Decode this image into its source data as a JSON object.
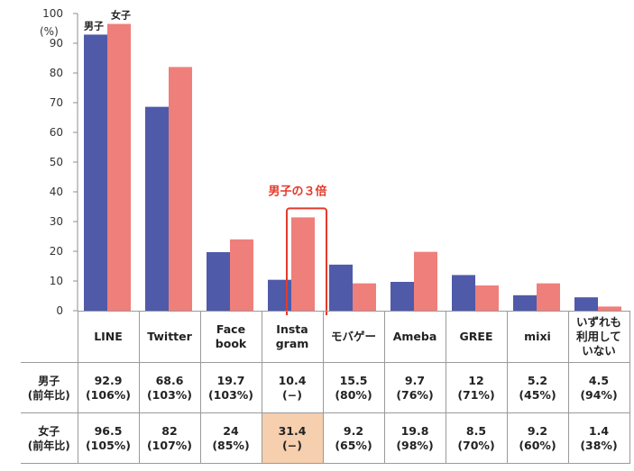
{
  "chart_data": {
    "type": "bar",
    "categories": [
      "LINE",
      "Twitter",
      "Face\nbook",
      "Insta\ngram",
      "モバゲー",
      "Ameba",
      "GREE",
      "mixi",
      "いずれも\n利用して\nいない"
    ],
    "series": [
      {
        "name": "男子",
        "color": "#4f5aa9",
        "values": [
          92.9,
          68.6,
          19.7,
          10.4,
          15.5,
          9.7,
          12,
          5.2,
          4.5
        ],
        "yoy": [
          "(106%)",
          "(103%)",
          "(103%)",
          "(−)",
          "(80%)",
          "(76%)",
          "(71%)",
          "(45%)",
          "(94%)"
        ]
      },
      {
        "name": "女子",
        "color": "#ef7f7a",
        "values": [
          96.5,
          82,
          24,
          31.4,
          9.2,
          19.8,
          8.5,
          9.2,
          1.4
        ],
        "yoy": [
          "(105%)",
          "(107%)",
          "(85%)",
          "(−)",
          "(65%)",
          "(98%)",
          "(70%)",
          "(60%)",
          "(38%)"
        ]
      }
    ],
    "ylim": [
      0,
      100
    ],
    "yticks": [
      0,
      10,
      20,
      30,
      40,
      50,
      60,
      70,
      80,
      90,
      100
    ],
    "ylabel": "(%)",
    "grid": false,
    "annotation": {
      "text": "男子の３倍",
      "category_index": 3,
      "color": "#e43a2b"
    },
    "table": {
      "rows": [
        {
          "header_line1": "男子",
          "header_line2": "(前年比)",
          "series_index": 0
        },
        {
          "header_line1": "女子",
          "header_line2": "(前年比)",
          "series_index": 1
        }
      ],
      "highlight": {
        "row": 1,
        "col": 3,
        "color": "#f5cfae"
      }
    }
  }
}
